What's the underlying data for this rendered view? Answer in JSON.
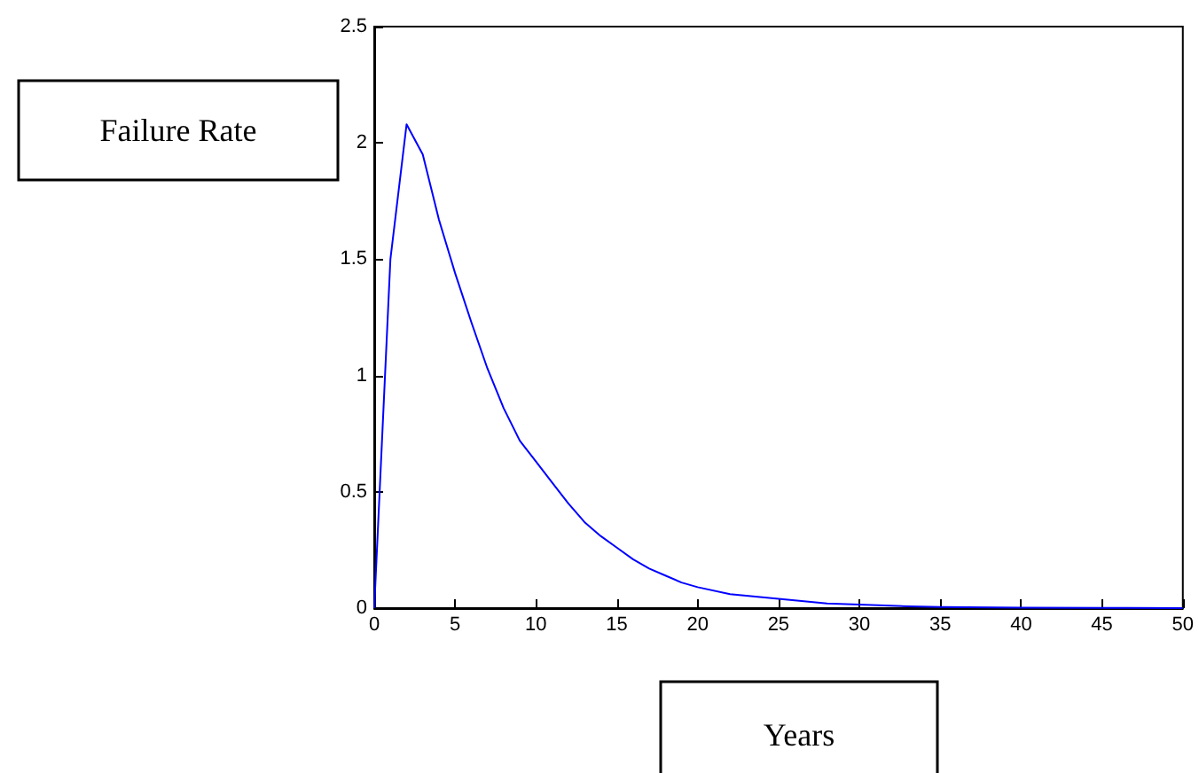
{
  "chart_data": {
    "type": "line",
    "xlabel": "Years",
    "ylabel": "Failure Rate",
    "x": [
      0,
      1,
      2,
      3,
      4,
      5,
      6,
      7,
      8,
      9,
      10,
      11,
      12,
      13,
      14,
      15,
      16,
      17,
      18,
      19,
      20,
      22,
      25,
      28,
      30,
      33,
      35,
      40,
      45,
      50
    ],
    "series": [
      {
        "color": "#0000ff",
        "values": [
          0,
          1.5,
          2.08,
          1.95,
          1.67,
          1.44,
          1.23,
          1.03,
          0.86,
          0.72,
          0.63,
          0.54,
          0.45,
          0.37,
          0.31,
          0.26,
          0.21,
          0.17,
          0.14,
          0.11,
          0.09,
          0.06,
          0.04,
          0.02,
          0.015,
          0.008,
          0.005,
          0.002,
          0.001,
          0
        ]
      }
    ],
    "xlim": [
      0,
      50
    ],
    "xticks": [
      0,
      5,
      10,
      15,
      20,
      25,
      30,
      35,
      40,
      45,
      50
    ],
    "ylim": [
      0,
      2.5
    ],
    "yticks": [
      0,
      0.5,
      1,
      1.5,
      2,
      2.5
    ],
    "grid": false,
    "marker": "none",
    "line_style": "solid"
  }
}
